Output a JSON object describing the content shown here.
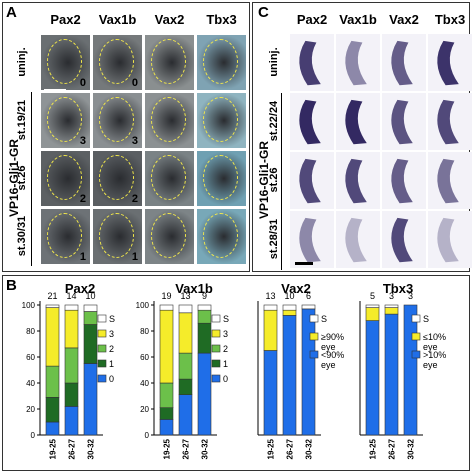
{
  "panel_a": {
    "letter": "A",
    "columns": [
      "Pax2",
      "Vax1b",
      "Vax2",
      "Tbx3"
    ],
    "group_label": "VP16-Gli1-GR",
    "rows": [
      {
        "label": "uninj.",
        "scores": [
          "0",
          "0",
          "",
          ""
        ]
      },
      {
        "label": "st.19/21",
        "scores": [
          "3",
          "3",
          "",
          ""
        ]
      },
      {
        "label": "st.26",
        "scores": [
          "2",
          "2",
          "",
          ""
        ]
      },
      {
        "label": "st.30/31",
        "scores": [
          "1",
          "1",
          "",
          ""
        ]
      }
    ]
  },
  "panel_c": {
    "letter": "C",
    "columns": [
      "Pax2",
      "Vax1b",
      "Vax2",
      "Tbx3"
    ],
    "group_label": "VP16-Gli1-GR",
    "rows": [
      {
        "label": "uninj."
      },
      {
        "label": "st.22/24"
      },
      {
        "label": "st.26"
      },
      {
        "label": "st.28/31"
      }
    ]
  },
  "panel_b": {
    "letter": "B"
  },
  "chart_data": [
    {
      "type": "bar",
      "title": "Pax2",
      "categories": [
        "19-25",
        "26-27",
        "30-32"
      ],
      "counts": [
        "21",
        "14",
        "10"
      ],
      "ylim": [
        0,
        100
      ],
      "yticks": [
        "0",
        "20",
        "40",
        "60",
        "80",
        "100"
      ],
      "series": [
        {
          "name": "0",
          "color": "#1f6ee8",
          "values": [
            10,
            22,
            55
          ]
        },
        {
          "name": "1",
          "color": "#1f6b24",
          "values": [
            19,
            18,
            30
          ]
        },
        {
          "name": "2",
          "color": "#6cc04a",
          "values": [
            24,
            27,
            10
          ]
        },
        {
          "name": "3",
          "color": "#f5ec2a",
          "values": [
            45,
            29,
            0
          ]
        },
        {
          "name": "S",
          "color": "#ffffff",
          "values": [
            2,
            4,
            5
          ]
        }
      ]
    },
    {
      "type": "bar",
      "title": "Vax1b",
      "categories": [
        "19-25",
        "26-27",
        "30-32"
      ],
      "counts": [
        "19",
        "13",
        "9"
      ],
      "ylim": [
        0,
        100
      ],
      "yticks": [
        "0",
        "20",
        "40",
        "60",
        "80",
        "100"
      ],
      "series": [
        {
          "name": "0",
          "color": "#1f6ee8",
          "values": [
            12,
            31,
            63
          ]
        },
        {
          "name": "1",
          "color": "#1f6b24",
          "values": [
            9,
            12,
            23
          ]
        },
        {
          "name": "2",
          "color": "#6cc04a",
          "values": [
            19,
            20,
            10
          ]
        },
        {
          "name": "3",
          "color": "#f5ec2a",
          "values": [
            56,
            31,
            0
          ]
        },
        {
          "name": "S",
          "color": "#ffffff",
          "values": [
            4,
            6,
            4
          ]
        }
      ]
    },
    {
      "type": "bar",
      "title": "Vax2",
      "categories": [
        "19-25",
        "26-27",
        "30-32"
      ],
      "counts": [
        "13",
        "10",
        "6"
      ],
      "ylim": [
        0,
        100
      ],
      "yticks": [],
      "series": [
        {
          "name": "<90% eye",
          "color": "#1f6ee8",
          "values": [
            65,
            92,
            97
          ]
        },
        {
          "name": "≥90% eye",
          "color": "#f5ec2a",
          "values": [
            31,
            4,
            0
          ]
        },
        {
          "name": "S",
          "color": "#ffffff",
          "values": [
            4,
            4,
            3
          ]
        }
      ]
    },
    {
      "type": "bar",
      "title": "Tbx3",
      "categories": [
        "19-25",
        "26-27",
        "30-32"
      ],
      "counts": [
        "5",
        "3",
        "3"
      ],
      "ylim": [
        0,
        100
      ],
      "yticks": [],
      "series": [
        {
          "name": ">10% eye",
          "color": "#1f6ee8",
          "values": [
            88,
            93,
            100
          ]
        },
        {
          "name": "≤10% eye",
          "color": "#f5ec2a",
          "values": [
            10,
            5,
            0
          ]
        },
        {
          "name": "S",
          "color": "#ffffff",
          "values": [
            2,
            2,
            0
          ]
        }
      ]
    }
  ]
}
